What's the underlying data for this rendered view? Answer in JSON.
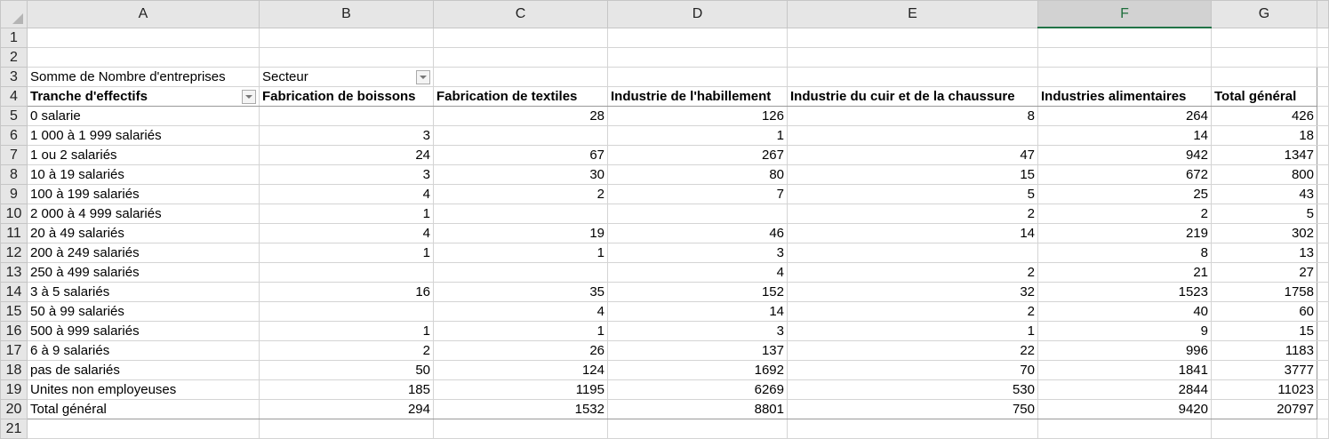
{
  "columns": [
    "A",
    "B",
    "C",
    "D",
    "E",
    "F",
    "G"
  ],
  "selected_column": "F",
  "pivot": {
    "value_label": "Somme de Nombre d'entreprises",
    "column_field": "Secteur",
    "row_field": "Tranche d'effectifs",
    "headers": [
      "Fabrication de boissons",
      "Fabrication de textiles",
      "Industrie de l'habillement",
      "Industrie du cuir et de la chaussure",
      "Industries alimentaires",
      "Total général"
    ],
    "rows": [
      {
        "label": "0 salarie",
        "values": [
          "",
          "28",
          "126",
          "8",
          "264",
          "426"
        ]
      },
      {
        "label": "1 000 à 1 999 salariés",
        "values": [
          "3",
          "",
          "1",
          "",
          "14",
          "18"
        ]
      },
      {
        "label": "1 ou 2 salariés",
        "values": [
          "24",
          "67",
          "267",
          "47",
          "942",
          "1347"
        ]
      },
      {
        "label": "10 à 19 salariés",
        "values": [
          "3",
          "30",
          "80",
          "15",
          "672",
          "800"
        ]
      },
      {
        "label": "100 à 199 salariés",
        "values": [
          "4",
          "2",
          "7",
          "5",
          "25",
          "43"
        ]
      },
      {
        "label": "2 000 à 4 999 salariés",
        "values": [
          "1",
          "",
          "",
          "2",
          "2",
          "5"
        ]
      },
      {
        "label": "20 à 49 salariés",
        "values": [
          "4",
          "19",
          "46",
          "14",
          "219",
          "302"
        ]
      },
      {
        "label": "200 à 249 salariés",
        "values": [
          "1",
          "1",
          "3",
          "",
          "8",
          "13"
        ]
      },
      {
        "label": "250 à 499 salariés",
        "values": [
          "",
          "",
          "4",
          "2",
          "21",
          "27"
        ]
      },
      {
        "label": "3 à 5 salariés",
        "values": [
          "16",
          "35",
          "152",
          "32",
          "1523",
          "1758"
        ]
      },
      {
        "label": "50 à 99 salariés",
        "values": [
          "",
          "4",
          "14",
          "2",
          "40",
          "60"
        ]
      },
      {
        "label": "500 à 999 salariés",
        "values": [
          "1",
          "1",
          "3",
          "1",
          "9",
          "15"
        ]
      },
      {
        "label": "6 à 9 salariés",
        "values": [
          "2",
          "26",
          "137",
          "22",
          "996",
          "1183"
        ]
      },
      {
        "label": "pas de salariés",
        "values": [
          "50",
          "124",
          "1692",
          "70",
          "1841",
          "3777"
        ]
      },
      {
        "label": "Unites non employeuses",
        "values": [
          "185",
          "1195",
          "6269",
          "530",
          "2844",
          "11023"
        ]
      }
    ],
    "total": {
      "label": "Total général",
      "values": [
        "294",
        "1532",
        "8801",
        "750",
        "9420",
        "20797"
      ]
    }
  }
}
